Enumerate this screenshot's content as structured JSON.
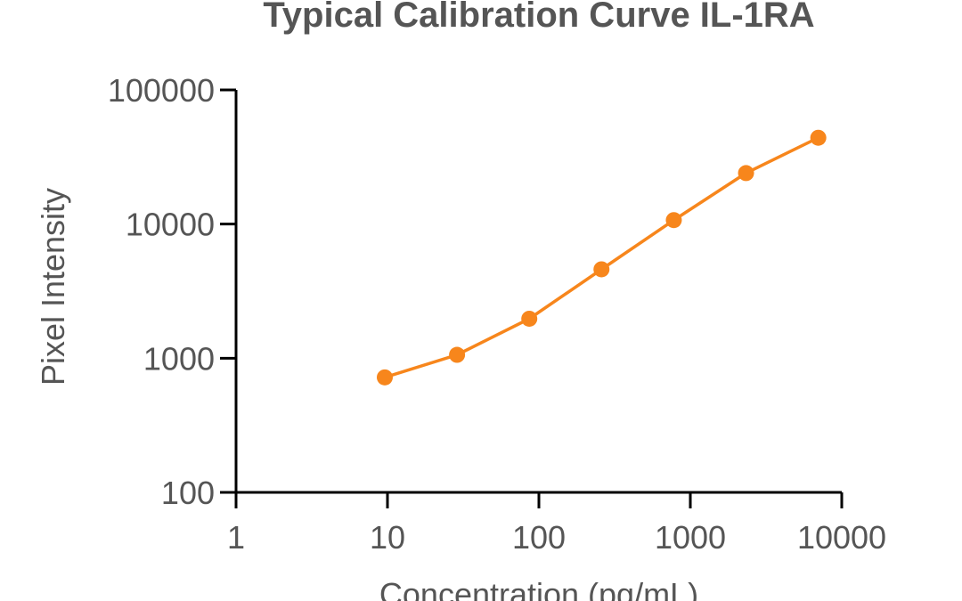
{
  "chart_data": {
    "type": "line",
    "title": "Typical Calibration Curve IL-1RA",
    "xlabel": "Concentration (pg/mL)",
    "ylabel": "Pixel Intensity",
    "x_scale": "log",
    "y_scale": "log",
    "xlim": [
      1,
      10000
    ],
    "ylim": [
      100,
      100000
    ],
    "x_ticks": [
      1,
      10,
      100,
      1000,
      10000
    ],
    "x_tick_labels": [
      "1",
      "10",
      "100",
      "1000",
      "10000"
    ],
    "y_ticks": [
      100,
      1000,
      10000,
      100000
    ],
    "y_tick_labels": [
      "100",
      "1000",
      "10000",
      "100000"
    ],
    "grid": false,
    "legend": "none",
    "series": [
      {
        "color": "#F7861C",
        "x": [
          9.6,
          28.8,
          86.4,
          259,
          778,
          2333,
          7000
        ],
        "y": [
          720,
          1060,
          1970,
          4600,
          10700,
          24000,
          44000
        ]
      }
    ],
    "colors": {
      "axis": "#000000",
      "text": "#555555",
      "series": "#F7861C"
    }
  }
}
